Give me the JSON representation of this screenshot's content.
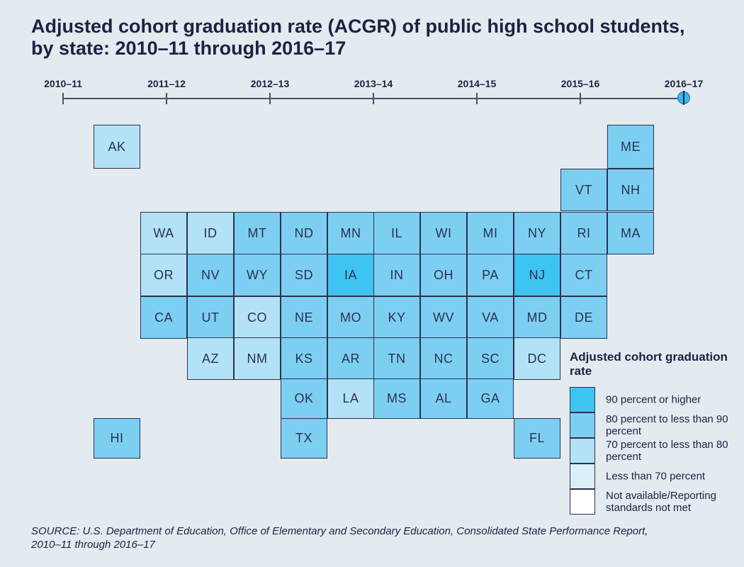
{
  "title": "Adjusted cohort graduation rate (ACGR) of public high school students, by state: 2010–11 through 2016–17",
  "timeline": {
    "years": [
      "2010–11",
      "2011–12",
      "2012–13",
      "2013–14",
      "2014–15",
      "2015–16",
      "2016–17"
    ],
    "selected_index": 6
  },
  "categories": [
    {
      "id": "c90",
      "label": "90 percent or higher",
      "color": "#3ec4f2"
    },
    {
      "id": "c80",
      "label": "80 percent to less than 90 percent",
      "color": "#7dcff2"
    },
    {
      "id": "c70",
      "label": "70 percent to less than 80 percent",
      "color": "#b3e2f7"
    },
    {
      "id": "c0",
      "label": "Less than 70 percent",
      "color": "#d9f0fa"
    },
    {
      "id": "na",
      "label": "Not available/Reporting standards not met",
      "color": "#ffffff"
    }
  ],
  "legend": {
    "title": "Adjusted cohort graduation rate"
  },
  "states": [
    {
      "abbr": "AK",
      "row": 0,
      "col": 1,
      "cat": "c70"
    },
    {
      "abbr": "ME",
      "row": 0,
      "col": 12,
      "cat": "c80"
    },
    {
      "abbr": "VT",
      "row": 1,
      "col": 11,
      "cat": "c80"
    },
    {
      "abbr": "NH",
      "row": 1,
      "col": 12,
      "cat": "c80"
    },
    {
      "abbr": "WA",
      "row": 2,
      "col": 2,
      "cat": "c70"
    },
    {
      "abbr": "ID",
      "row": 2,
      "col": 3,
      "cat": "c70"
    },
    {
      "abbr": "MT",
      "row": 2,
      "col": 4,
      "cat": "c80"
    },
    {
      "abbr": "ND",
      "row": 2,
      "col": 5,
      "cat": "c80"
    },
    {
      "abbr": "MN",
      "row": 2,
      "col": 6,
      "cat": "c80"
    },
    {
      "abbr": "IL",
      "row": 2,
      "col": 7,
      "cat": "c80"
    },
    {
      "abbr": "WI",
      "row": 2,
      "col": 8,
      "cat": "c80"
    },
    {
      "abbr": "MI",
      "row": 2,
      "col": 9,
      "cat": "c80"
    },
    {
      "abbr": "NY",
      "row": 2,
      "col": 10,
      "cat": "c80"
    },
    {
      "abbr": "RI",
      "row": 2,
      "col": 11,
      "cat": "c80"
    },
    {
      "abbr": "MA",
      "row": 2,
      "col": 12,
      "cat": "c80"
    },
    {
      "abbr": "OR",
      "row": 3,
      "col": 2,
      "cat": "c70"
    },
    {
      "abbr": "NV",
      "row": 3,
      "col": 3,
      "cat": "c80"
    },
    {
      "abbr": "WY",
      "row": 3,
      "col": 4,
      "cat": "c80"
    },
    {
      "abbr": "SD",
      "row": 3,
      "col": 5,
      "cat": "c80"
    },
    {
      "abbr": "IA",
      "row": 3,
      "col": 6,
      "cat": "c90"
    },
    {
      "abbr": "IN",
      "row": 3,
      "col": 7,
      "cat": "c80"
    },
    {
      "abbr": "OH",
      "row": 3,
      "col": 8,
      "cat": "c80"
    },
    {
      "abbr": "PA",
      "row": 3,
      "col": 9,
      "cat": "c80"
    },
    {
      "abbr": "NJ",
      "row": 3,
      "col": 10,
      "cat": "c90"
    },
    {
      "abbr": "CT",
      "row": 3,
      "col": 11,
      "cat": "c80"
    },
    {
      "abbr": "CA",
      "row": 4,
      "col": 2,
      "cat": "c80"
    },
    {
      "abbr": "UT",
      "row": 4,
      "col": 3,
      "cat": "c80"
    },
    {
      "abbr": "CO",
      "row": 4,
      "col": 4,
      "cat": "c70"
    },
    {
      "abbr": "NE",
      "row": 4,
      "col": 5,
      "cat": "c80"
    },
    {
      "abbr": "MO",
      "row": 4,
      "col": 6,
      "cat": "c80"
    },
    {
      "abbr": "KY",
      "row": 4,
      "col": 7,
      "cat": "c80"
    },
    {
      "abbr": "WV",
      "row": 4,
      "col": 8,
      "cat": "c80"
    },
    {
      "abbr": "VA",
      "row": 4,
      "col": 9,
      "cat": "c80"
    },
    {
      "abbr": "MD",
      "row": 4,
      "col": 10,
      "cat": "c80"
    },
    {
      "abbr": "DE",
      "row": 4,
      "col": 11,
      "cat": "c80"
    },
    {
      "abbr": "AZ",
      "row": 5,
      "col": 3,
      "cat": "c70"
    },
    {
      "abbr": "NM",
      "row": 5,
      "col": 4,
      "cat": "c70"
    },
    {
      "abbr": "KS",
      "row": 5,
      "col": 5,
      "cat": "c80"
    },
    {
      "abbr": "AR",
      "row": 5,
      "col": 6,
      "cat": "c80"
    },
    {
      "abbr": "TN",
      "row": 5,
      "col": 7,
      "cat": "c80"
    },
    {
      "abbr": "NC",
      "row": 5,
      "col": 8,
      "cat": "c80"
    },
    {
      "abbr": "SC",
      "row": 5,
      "col": 9,
      "cat": "c80"
    },
    {
      "abbr": "DC",
      "row": 5,
      "col": 10,
      "cat": "c70"
    },
    {
      "abbr": "OK",
      "row": 6,
      "col": 5,
      "cat": "c80"
    },
    {
      "abbr": "LA",
      "row": 6,
      "col": 6,
      "cat": "c70"
    },
    {
      "abbr": "MS",
      "row": 6,
      "col": 7,
      "cat": "c80"
    },
    {
      "abbr": "AL",
      "row": 6,
      "col": 8,
      "cat": "c80"
    },
    {
      "abbr": "GA",
      "row": 6,
      "col": 9,
      "cat": "c80"
    },
    {
      "abbr": "HI",
      "row": 7,
      "col": 1,
      "cat": "c80"
    },
    {
      "abbr": "TX",
      "row": 7,
      "col": 5,
      "cat": "c80"
    },
    {
      "abbr": "FL",
      "row": 7,
      "col": 10,
      "cat": "c80"
    }
  ],
  "source": "SOURCE: U.S. Department of Education, Office of Elementary and Secondary Education, Consolidated State Performance Report, 2010–11 through 2016–17"
}
